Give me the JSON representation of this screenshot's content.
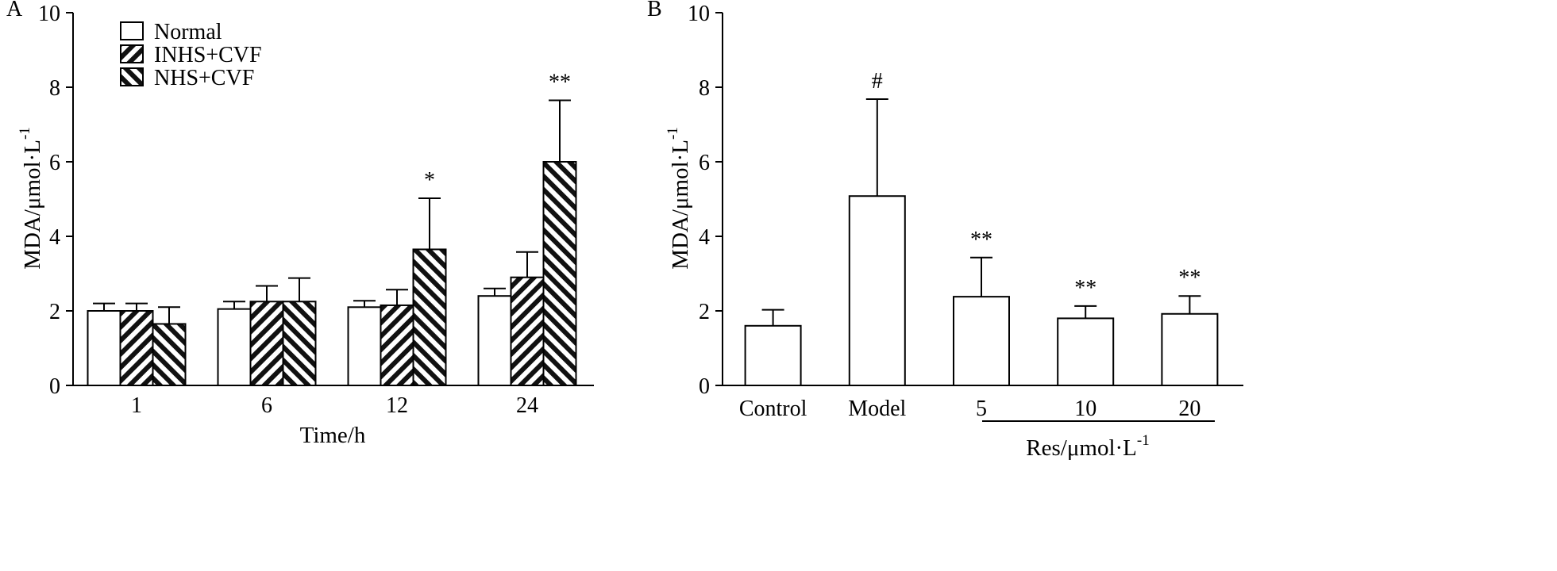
{
  "chart_data": [
    {
      "panel": "A",
      "type": "bar",
      "title": "",
      "xlabel": "Time/h",
      "ylabel": "MDA/μmol·L",
      "ylabel_sup": "-1",
      "ylim": [
        0,
        10
      ],
      "yticks": [
        "0",
        "2",
        "4",
        "6",
        "8",
        "10"
      ],
      "categories": [
        "1",
        "6",
        "12",
        "24"
      ],
      "legend_position": "top-left",
      "grid": false,
      "series": [
        {
          "name": "Normal",
          "pattern": "none",
          "values": [
            2.0,
            2.05,
            2.1,
            2.4
          ],
          "errors": [
            0.2,
            0.2,
            0.17,
            0.2
          ],
          "annotations": [
            "",
            "",
            "",
            ""
          ]
        },
        {
          "name": "INHS+CVF",
          "pattern": "back-diagonal",
          "values": [
            2.0,
            2.25,
            2.15,
            2.9
          ],
          "errors": [
            0.2,
            0.42,
            0.42,
            0.68
          ],
          "annotations": [
            "",
            "",
            "",
            ""
          ]
        },
        {
          "name": "NHS+CVF",
          "pattern": "forward-diagonal",
          "values": [
            1.65,
            2.25,
            3.65,
            6.0
          ],
          "errors": [
            0.45,
            0.63,
            1.37,
            1.65
          ],
          "annotations": [
            "",
            "",
            "*",
            "**"
          ]
        }
      ]
    },
    {
      "panel": "B",
      "type": "bar",
      "title": "",
      "xlabel": "",
      "ylabel": "MDA/μmol·L",
      "ylabel_sup": "-1",
      "ylim": [
        0,
        10
      ],
      "yticks": [
        "0",
        "2",
        "4",
        "6",
        "8",
        "10"
      ],
      "categories": [
        "Control",
        "Model",
        "5",
        "10",
        "20"
      ],
      "values": [
        1.6,
        5.08,
        2.38,
        1.8,
        1.92
      ],
      "errors": [
        0.43,
        2.6,
        1.05,
        0.33,
        0.48
      ],
      "annotations": [
        "",
        "#",
        "**",
        "**",
        "**"
      ],
      "group_label": "Res/μmol·L",
      "group_label_sup": "-1",
      "group_members": [
        "5",
        "10",
        "20"
      ],
      "grid": false
    }
  ]
}
